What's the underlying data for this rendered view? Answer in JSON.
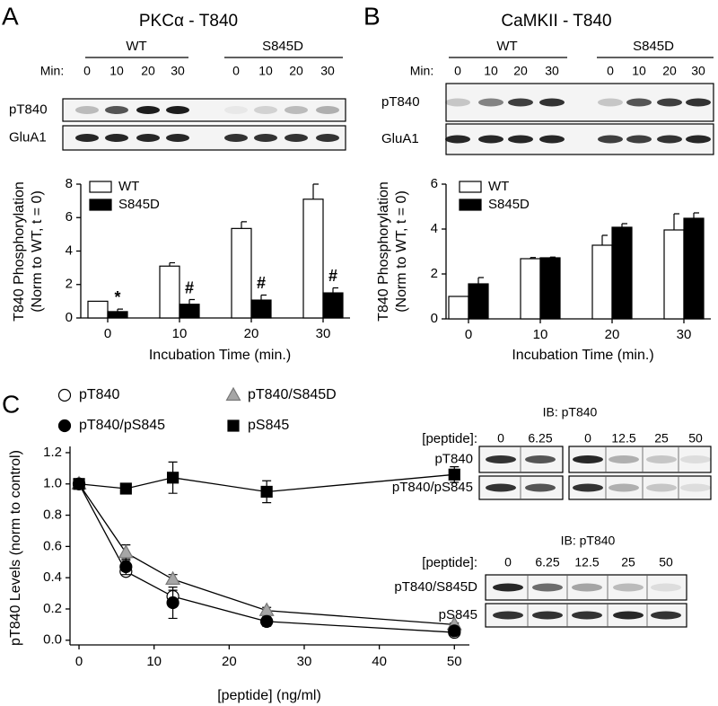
{
  "panel_labels": [
    "A",
    "B",
    "C"
  ],
  "blots": [
    {
      "groups": [
        "WT",
        "S845D"
      ],
      "min_label": "Min:",
      "lanes": [
        0,
        10,
        20,
        30,
        0,
        10,
        20,
        30
      ],
      "rows": [
        "pT840",
        "GluA1"
      ]
    },
    {
      "groups": [
        "WT",
        "S845D"
      ],
      "min_label": "Min:",
      "lanes": [
        0,
        10,
        20,
        30,
        0,
        10,
        20,
        30
      ],
      "rows": [
        "pT840",
        "GluA1"
      ]
    },
    {
      "ib": "IB: pT840",
      "peptide_label": "[peptide]:",
      "lanes": [
        0,
        6.25,
        0,
        12.5,
        25,
        50
      ],
      "rows": [
        "pT840",
        "pT840/pS845"
      ]
    },
    {
      "ib": "IB: pT840",
      "peptide_label": "[peptide]:",
      "lanes": [
        0,
        6.25,
        12.5,
        25,
        50
      ],
      "rows": [
        "pT840/S845D",
        "pS845"
      ]
    }
  ],
  "chart_data": [
    {
      "type": "bar",
      "title": "PKCα - T840",
      "categories": [
        "0",
        "10",
        "20",
        "30"
      ],
      "series": [
        {
          "name": "WT",
          "color": "#ffffff",
          "values": [
            1,
            3.1,
            5.35,
            7.1
          ],
          "errors": [
            0,
            0.2,
            0.4,
            0.9
          ]
        },
        {
          "name": "S845D",
          "color": "#000000",
          "values": [
            0.38,
            0.82,
            1.07,
            1.5
          ],
          "errors": [
            0.15,
            0.28,
            0.3,
            0.3
          ],
          "annotations": [
            "*",
            "#",
            "#",
            "#"
          ]
        }
      ],
      "ylim": [
        0,
        8
      ],
      "yticks": [
        0,
        2,
        4,
        6,
        8
      ],
      "ylabel": [
        "T840 Phosphorylation",
        "(Norm to WT, t = 0)"
      ],
      "xlabel": "Incubation Time  (min.)",
      "legend": "upper left"
    },
    {
      "type": "bar",
      "title": "CaMKII - T840",
      "categories": [
        "0",
        "10",
        "20",
        "30"
      ],
      "series": [
        {
          "name": "WT",
          "color": "#ffffff",
          "values": [
            1,
            2.68,
            3.28,
            3.96
          ],
          "errors": [
            0,
            0.05,
            0.44,
            0.72
          ]
        },
        {
          "name": "S845D",
          "color": "#000000",
          "values": [
            1.56,
            2.72,
            4.08,
            4.48
          ],
          "errors": [
            0.28,
            0.03,
            0.16,
            0.24
          ]
        }
      ],
      "ylim": [
        0,
        6
      ],
      "yticks": [
        0,
        2,
        4,
        6
      ],
      "ylabel": [
        "T840 Phosphorylation",
        "(Norm to WT, t = 0)"
      ],
      "xlabel": "Incubation Time  (min.)",
      "legend": "upper left"
    },
    {
      "type": "scatter",
      "x": [
        0,
        6.25,
        12.5,
        25,
        50
      ],
      "series": [
        {
          "name": "pT840",
          "marker": "circle",
          "color": "#ffffff",
          "values": [
            1.0,
            0.44,
            0.28,
            0.12,
            0.05
          ],
          "errors": [
            0,
            0.02,
            0.04,
            0.02,
            0.01
          ],
          "connected": true
        },
        {
          "name": "pT840/S845D",
          "marker": "triangle",
          "color": "#a6a6a6",
          "values": [
            1.0,
            0.56,
            0.39,
            0.19,
            0.1
          ],
          "errors": [
            0,
            0.05,
            0.03,
            0.02,
            0.01
          ],
          "connected": true
        },
        {
          "name": "pT840/pS845",
          "marker": "circle",
          "color": "#000000",
          "values": [
            1.0,
            0.47,
            0.24,
            0.12,
            0.06
          ],
          "errors": [
            0,
            0.05,
            0.1,
            0.03,
            0.02
          ],
          "connected": false
        },
        {
          "name": "pS845",
          "marker": "square",
          "color": "#000000",
          "values": [
            1.0,
            0.97,
            1.04,
            0.95,
            1.06
          ],
          "errors": [
            0.02,
            0.03,
            0.1,
            0.07,
            0.05
          ],
          "connected": true
        }
      ],
      "xlim": [
        -1.2,
        52
      ],
      "xticks": [
        0,
        10,
        20,
        30,
        40,
        50
      ],
      "ylim": [
        -0.03,
        1.24
      ],
      "yticks": [
        {
          "value": 0,
          "label": "0.0"
        },
        0.2,
        0.4,
        0.6,
        0.8,
        {
          "value": 1,
          "label": "1.0"
        },
        1.2
      ],
      "ylabel": [
        "pT840 Levels (norm to control)"
      ],
      "xlabel": "[peptide] (ng/ml)",
      "legend": "upper"
    }
  ]
}
